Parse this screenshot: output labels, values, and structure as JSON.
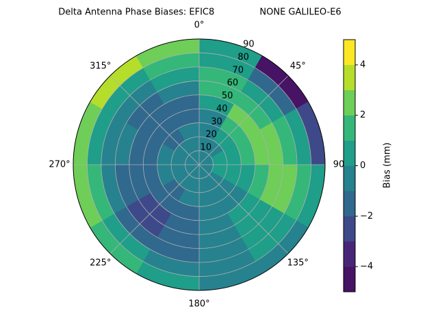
{
  "chart_data": {
    "type": "polar-contour",
    "title": "Delta Antenna Phase Biases: EFIC8                NONE GALILEO-E6",
    "colorbar_label": "Bias (mm)",
    "azimuth": [
      15,
      45,
      75,
      105,
      135,
      165,
      195,
      225,
      255,
      285,
      315,
      345
    ],
    "zenith": [
      5,
      15,
      25,
      35,
      45,
      55,
      65,
      75,
      85
    ],
    "values": [
      [
        -0.5,
        -0.5,
        -0.5,
        -0.5,
        -0.5,
        -0.5,
        -0.5,
        -0.5,
        -0.5,
        -0.5,
        -0.5,
        -0.5
      ],
      [
        -0.5,
        -0.5,
        0.5,
        0.5,
        -0.5,
        -0.5,
        -0.5,
        -0.5,
        -0.5,
        -0.5,
        -0.5,
        -0.5
      ],
      [
        -0.5,
        0.5,
        0.5,
        0.5,
        -0.5,
        -0.5,
        -0.5,
        -1.5,
        -0.5,
        -0.5,
        -1.5,
        -0.5
      ],
      [
        -0.5,
        1.5,
        1.5,
        0.5,
        -0.5,
        -0.5,
        -1.5,
        -1.5,
        -1.5,
        -1.5,
        -1.5,
        -1.5
      ],
      [
        0.5,
        2.5,
        2.5,
        1.5,
        0.5,
        -0.5,
        -1.5,
        -2.5,
        -1.5,
        -1.5,
        -1.5,
        -1.5
      ],
      [
        1.5,
        1.5,
        2.5,
        2.5,
        0.5,
        -0.5,
        -1.5,
        -2.5,
        -1.5,
        -0.5,
        -1.5,
        -0.5
      ],
      [
        1.5,
        0.5,
        1.5,
        2.5,
        0.5,
        -0.5,
        -1.5,
        -1.5,
        -0.5,
        -0.5,
        -0.5,
        0.5
      ],
      [
        0.5,
        -1.5,
        0.5,
        1.5,
        0.5,
        -0.5,
        -0.5,
        0.5,
        1.5,
        0.5,
        0.5,
        1.5
      ],
      [
        0.5,
        -4.5,
        -2.5,
        0.5,
        -0.5,
        -0.5,
        0.5,
        1.5,
        2.5,
        2.5,
        3.5,
        2.5
      ]
    ],
    "levels": [
      -5,
      -4,
      -3,
      -2,
      -1,
      0,
      1,
      2,
      3,
      4,
      5
    ],
    "colors": [
      "#471365",
      "#482677",
      "#3e4989",
      "#31688e",
      "#26828e",
      "#1f9e89",
      "#35b779",
      "#6ece58",
      "#b5de2b",
      "#fde725"
    ],
    "rlim": [
      0,
      90
    ],
    "rticks": [
      10,
      20,
      30,
      40,
      50,
      60,
      70,
      80,
      90
    ],
    "thetaticks": [
      {
        "value": 0,
        "label": "0°"
      },
      {
        "value": 45,
        "label": "45°"
      },
      90,
      {
        "value": 135,
        "label": "135°"
      },
      {
        "value": 180,
        "label": "180°"
      },
      {
        "value": 225,
        "label": "225°"
      },
      {
        "value": 270,
        "label": "270°"
      },
      {
        "value": 315,
        "label": "315°"
      }
    ],
    "clim": [
      -5,
      5
    ],
    "cticks": [
      {
        "value": -4,
        "label": "−4"
      },
      {
        "value": -2,
        "label": "−2"
      },
      0,
      2,
      4
    ],
    "grid": true
  }
}
